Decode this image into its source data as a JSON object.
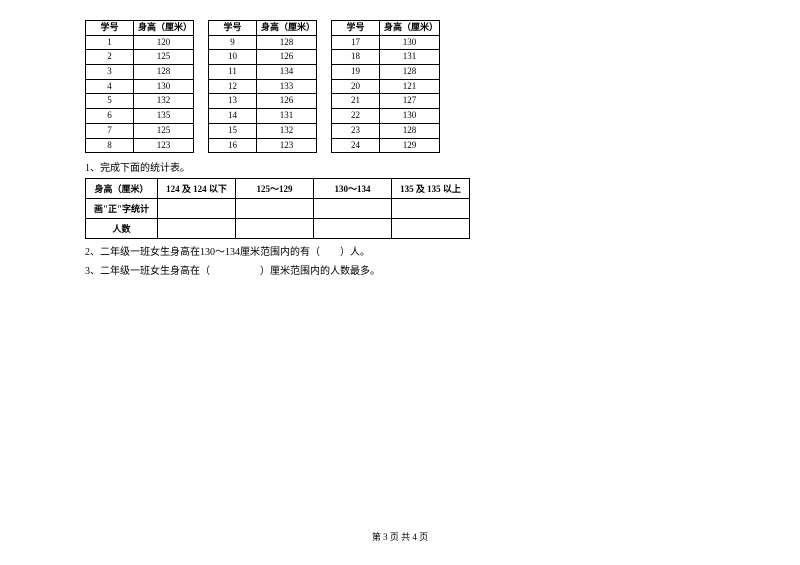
{
  "header_id": "学号",
  "header_height": "身高（厘米）",
  "tables": [
    [
      {
        "id": "1",
        "h": "120"
      },
      {
        "id": "2",
        "h": "125"
      },
      {
        "id": "3",
        "h": "128"
      },
      {
        "id": "4",
        "h": "130"
      },
      {
        "id": "5",
        "h": "132"
      },
      {
        "id": "6",
        "h": "135"
      },
      {
        "id": "7",
        "h": "125"
      },
      {
        "id": "8",
        "h": "123"
      }
    ],
    [
      {
        "id": "9",
        "h": "128"
      },
      {
        "id": "10",
        "h": "126"
      },
      {
        "id": "11",
        "h": "134"
      },
      {
        "id": "12",
        "h": "133"
      },
      {
        "id": "13",
        "h": "126"
      },
      {
        "id": "14",
        "h": "131"
      },
      {
        "id": "15",
        "h": "132"
      },
      {
        "id": "16",
        "h": "123"
      }
    ],
    [
      {
        "id": "17",
        "h": "130"
      },
      {
        "id": "18",
        "h": "131"
      },
      {
        "id": "19",
        "h": "128"
      },
      {
        "id": "20",
        "h": "121"
      },
      {
        "id": "21",
        "h": "127"
      },
      {
        "id": "22",
        "h": "130"
      },
      {
        "id": "23",
        "h": "128"
      },
      {
        "id": "24",
        "h": "129"
      }
    ]
  ],
  "q1": "1、完成下面的统计表。",
  "summary": {
    "row_label_height": "身高（厘米）",
    "row_label_tally": "画\"正\"字统计",
    "row_label_count": "人数",
    "ranges": [
      "124 及 124 以下",
      "125～129",
      "130～134",
      "135 及 135 以上"
    ]
  },
  "q2": "2、二年级一班女生身高在130～134厘米范围内的有（　　）人。",
  "q3": "3、二年级一班女生身高在（　　　　　）厘米范围内的人数最多。",
  "footer": "第 3 页 共 4 页",
  "style": {
    "bg": "#ffffff",
    "border": "#000000",
    "text": "#000000"
  }
}
